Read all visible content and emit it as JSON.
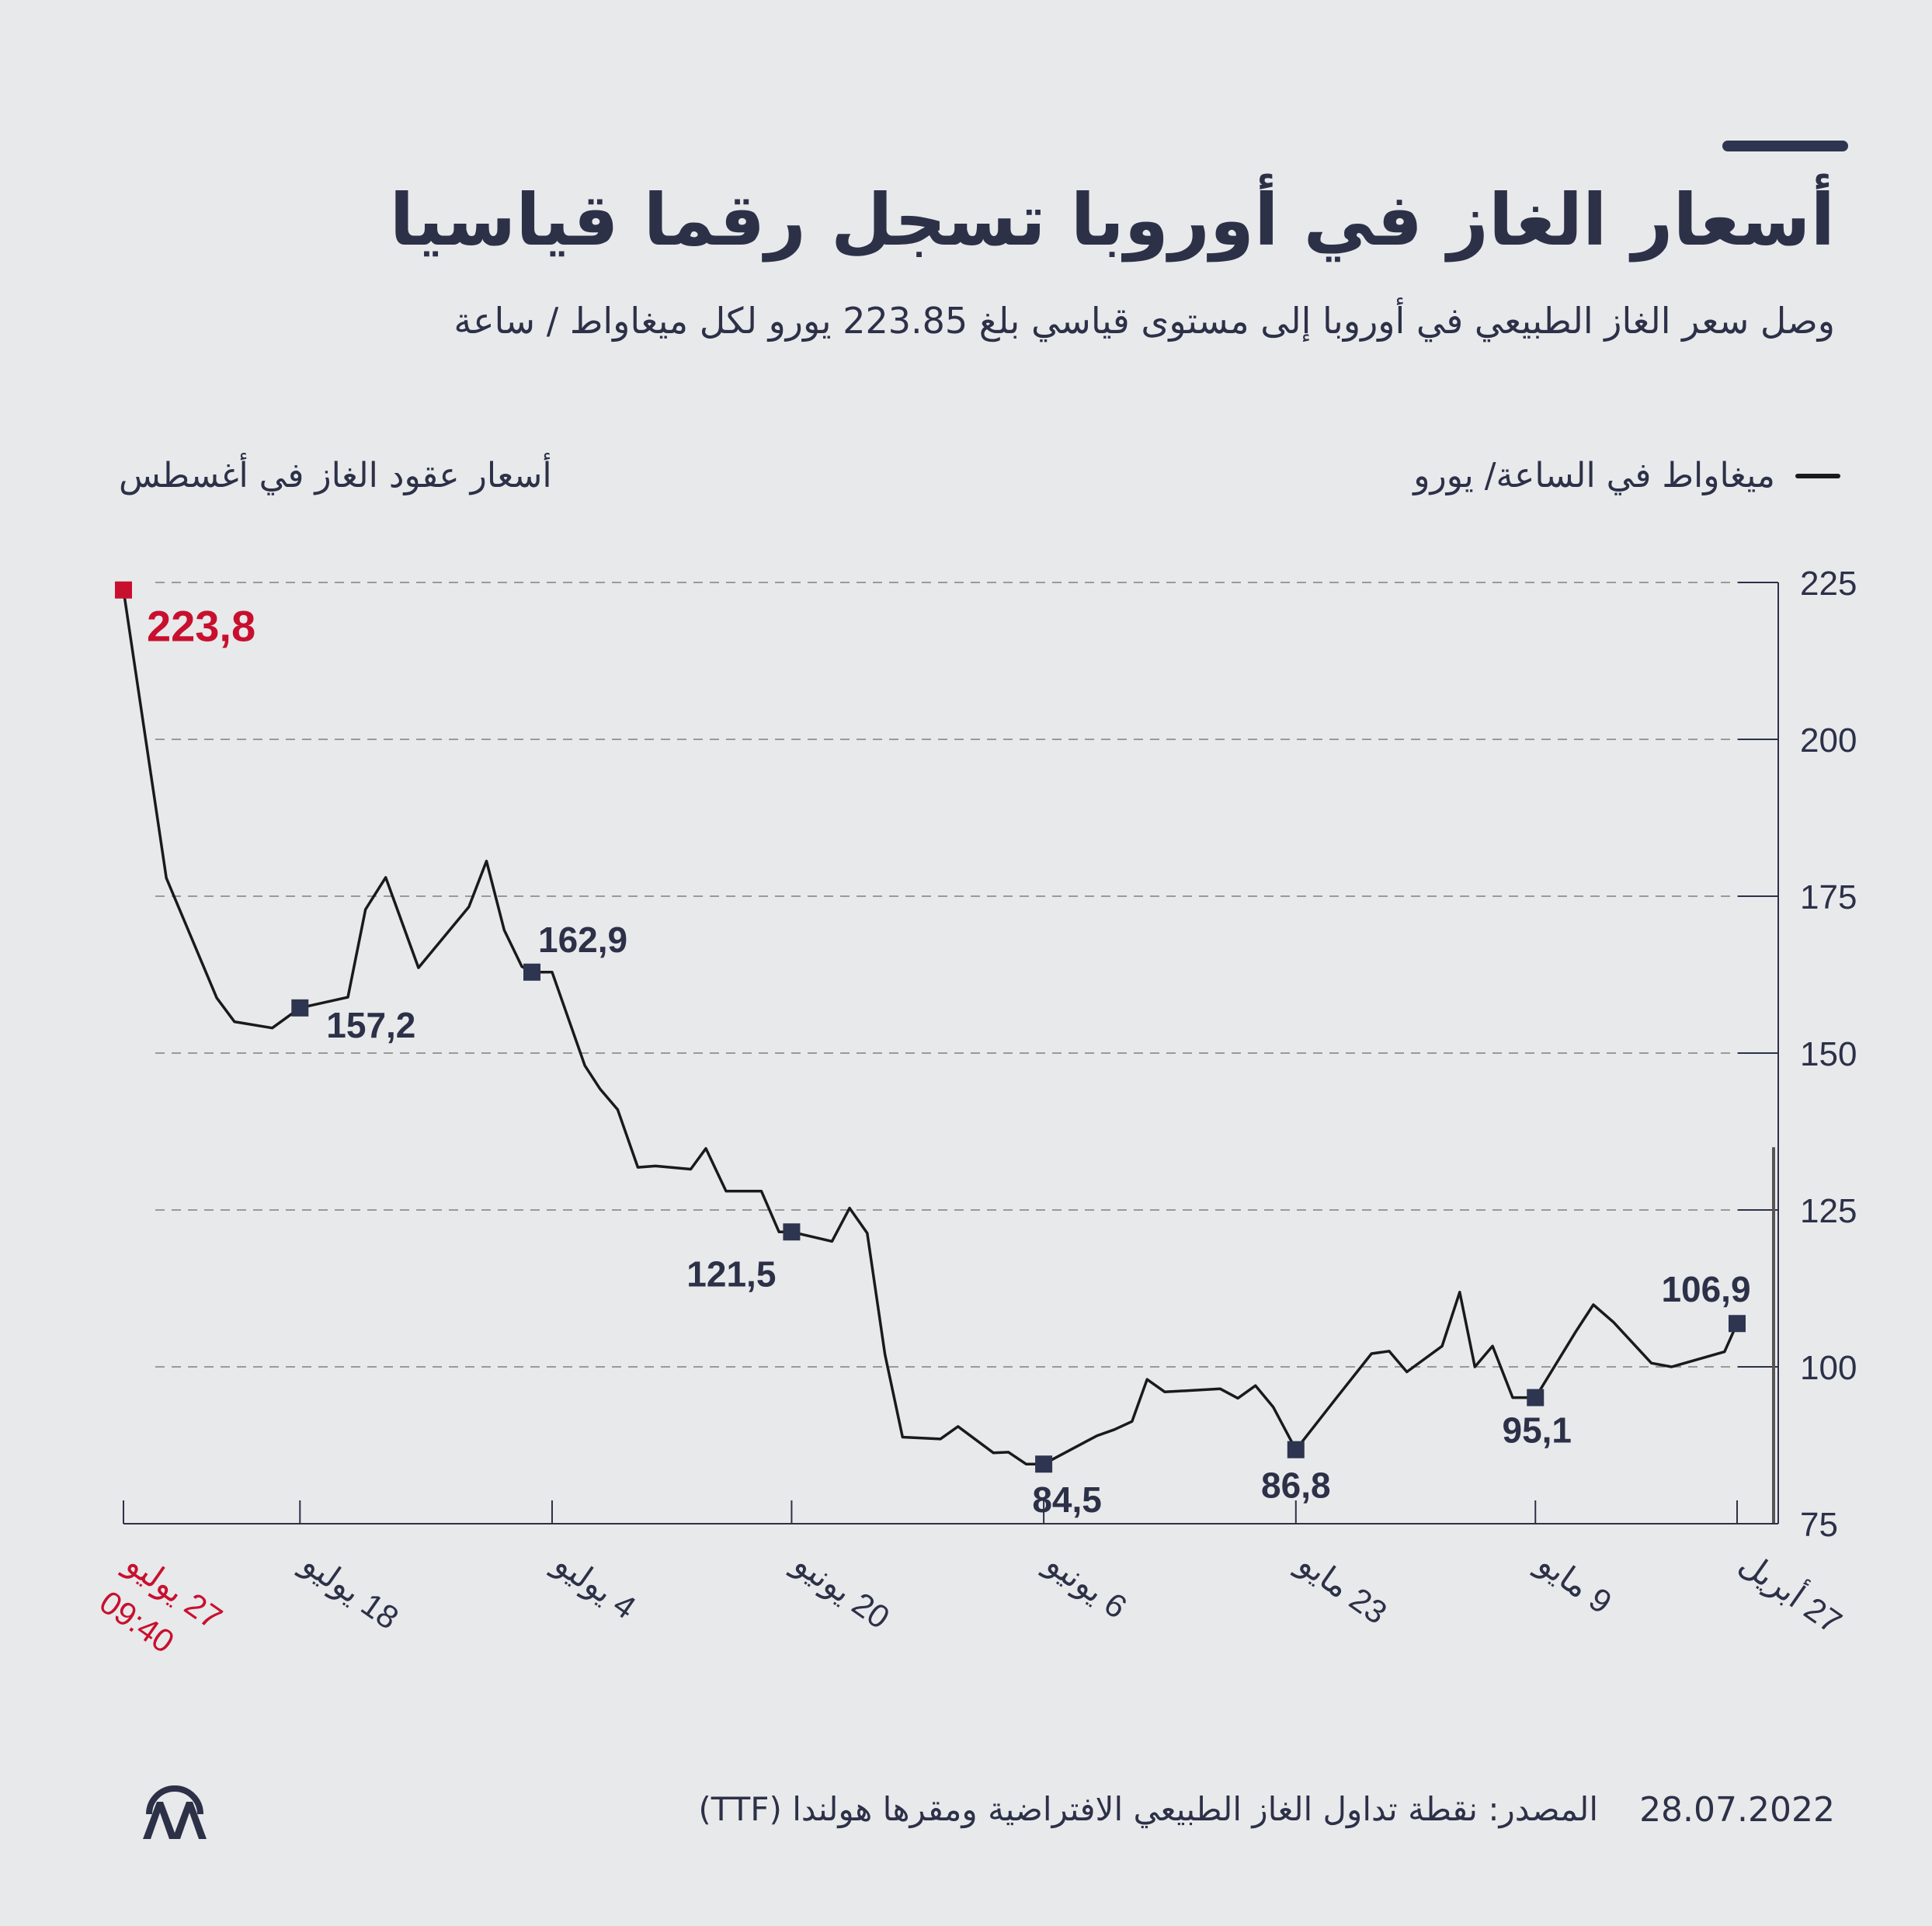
{
  "header": {
    "title": "أسعار الغاز في أوروبا تسجل رقما قياسيا",
    "subtitle": "وصل سعر الغاز الطبيعي في أوروبا إلى مستوى قياسي بلغ 223.85 يورو لكل ميغاواط / ساعة"
  },
  "legend": {
    "label": "ميغاواط في الساعة/ يورو"
  },
  "chart_heading": "أسعار عقود الغاز في أغسطس",
  "colors": {
    "background": "#e8e9eb",
    "text": "#2c3148",
    "line": "#1a1a1a",
    "marker": "#2e3550",
    "highlight": "#c8102e",
    "grid": "#9a9a9a"
  },
  "footer": {
    "date": "28.07.2022",
    "source": "المصدر: نقطة تداول الغاز الطبيعي الافتراضية ومقرها هولندا (TTF)",
    "logo_icon": "aa-logo-icon"
  },
  "chart_data": {
    "type": "line",
    "title": "أسعار عقود الغاز في أغسطس",
    "ylabel": "ميغاواط في الساعة/ يورو",
    "ylim": [
      75,
      225
    ],
    "yticks": [
      75,
      100,
      125,
      150,
      175,
      200,
      225
    ],
    "x_direction": "right-to-left",
    "x_axis_note": "x = trading days counted back from 27 July 2022 (0 = 27 July, 64 = 27 April)",
    "x_ticks": [
      {
        "label": "27 يوليو",
        "sublabel": "09:40",
        "x": 0,
        "highlight": true
      },
      {
        "label": "18 يوليو",
        "x": 7
      },
      {
        "label": "4 يوليو",
        "x": 17
      },
      {
        "label": "20 يونيو",
        "x": 26.5
      },
      {
        "label": "6 يونيو",
        "x": 36.5
      },
      {
        "label": "23 مايو",
        "x": 46.5
      },
      {
        "label": "9 مايو",
        "x": 56
      },
      {
        "label": "27 أبريل",
        "x": 64
      }
    ],
    "series": [
      {
        "name": "ميغاواط في الساعة/ يورو",
        "x": [
          0,
          1.7,
          3.7,
          4.4,
          5.9,
          7,
          8.9,
          9.6,
          10.4,
          11.7,
          13.7,
          14.4,
          15.1,
          15.8,
          16.2,
          17,
          18.3,
          18.9,
          19.6,
          20.4,
          21.1,
          22.5,
          23.1,
          23.9,
          25.3,
          26,
          26.5,
          28.1,
          28.8,
          29.5,
          30.2,
          30.9,
          32.4,
          33.1,
          34.5,
          35.1,
          35.8,
          36.5,
          38.6,
          39.3,
          40,
          40.6,
          41.3,
          43.5,
          44.2,
          44.9,
          45.6,
          46.5,
          48.1,
          49.5,
          50.2,
          50.9,
          52.3,
          53,
          53.6,
          54.3,
          55.1,
          56,
          57.6,
          58.3,
          59.1,
          60.6,
          61.4,
          63.5,
          64
        ],
        "values": [
          223.8,
          177.9,
          158.8,
          155,
          154,
          157.2,
          158.9,
          172.9,
          178,
          163.6,
          173.3,
          180.6,
          169.6,
          163.8,
          162.9,
          162.9,
          148,
          144.3,
          141,
          131.8,
          132,
          131.5,
          134.8,
          128,
          128,
          121.5,
          121.5,
          120,
          125.3,
          121.3,
          102,
          88.8,
          88.5,
          90.5,
          86.3,
          86.4,
          84.5,
          84.5,
          89,
          90,
          91.3,
          98,
          96,
          96.5,
          95,
          97,
          93.6,
          86.8,
          95,
          102.1,
          102.5,
          99.2,
          103.3,
          111.9,
          100,
          103.3,
          95.1,
          95.1,
          105.6,
          109.9,
          107.1,
          100.6,
          100,
          102.4,
          106.9
        ]
      }
    ],
    "annotations": [
      {
        "label": "223,8",
        "x": 0,
        "y": 223.8,
        "highlight": true
      },
      {
        "label": "157,2",
        "x": 7,
        "y": 157.2
      },
      {
        "label": "162,9",
        "x": 16.2,
        "y": 162.9
      },
      {
        "label": "121,5",
        "x": 26.5,
        "y": 121.5
      },
      {
        "label": "84,5",
        "x": 36.5,
        "y": 84.5
      },
      {
        "label": "86,8",
        "x": 46.5,
        "y": 86.8
      },
      {
        "label": "95,1",
        "x": 56,
        "y": 95.1
      },
      {
        "label": "106,9",
        "x": 64,
        "y": 106.9
      }
    ]
  }
}
